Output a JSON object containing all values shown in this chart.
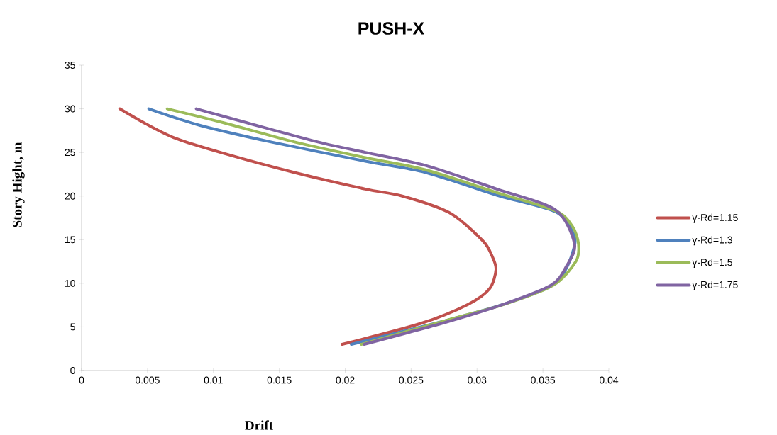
{
  "chart_data": {
    "type": "line",
    "title": "PUSH-X",
    "xlabel": "Drift",
    "ylabel": "Story Hight, m",
    "xlim": [
      0,
      0.04
    ],
    "xticks": [
      0,
      0.005,
      0.01,
      0.015,
      0.02,
      0.025,
      0.03,
      0.035,
      0.04
    ],
    "ylim": [
      0,
      35
    ],
    "yticks": [
      0,
      5,
      10,
      15,
      20,
      25,
      30,
      35
    ],
    "legend": "right",
    "marker": "none",
    "line_style": "solid",
    "series": [
      {
        "name": "γ-Rd=1.15",
        "color": "#c0504d",
        "x": [
          0.0029,
          0.00485,
          0.00716,
          0.01077,
          0.01615,
          0.02153,
          0.02433,
          0.02789,
          0.03042,
          0.03112,
          0.03144,
          0.03096,
          0.02934,
          0.02573,
          0.01976
        ],
        "values": [
          30,
          28.3,
          26.6,
          24.9,
          22.7,
          20.8,
          20.0,
          18.1,
          14.9,
          13.2,
          11.6,
          9.4,
          7.6,
          5.4,
          3.0
        ]
      },
      {
        "name": "γ-Rd=1.3",
        "color": "#4f81bd",
        "x": [
          0.0051,
          0.00899,
          0.01437,
          0.02153,
          0.02611,
          0.0315,
          0.03596,
          0.03725,
          0.03742,
          0.0368,
          0.03564,
          0.03203,
          0.02756,
          0.02046
        ],
        "values": [
          30,
          28.1,
          26.2,
          24.0,
          22.7,
          20.1,
          18.2,
          15.9,
          14.5,
          11.8,
          9.7,
          7.6,
          5.7,
          3.0
        ]
      },
      {
        "name": "γ-Rd=1.5",
        "color": "#9bbb59",
        "x": [
          0.0065,
          0.01077,
          0.01615,
          0.02153,
          0.02611,
          0.0315,
          0.03596,
          0.03725,
          0.0377,
          0.0375,
          0.0358,
          0.0321,
          0.02756,
          0.02121
        ],
        "values": [
          30,
          28.4,
          26.2,
          24.4,
          23.0,
          20.4,
          18.3,
          16.5,
          14.5,
          12.5,
          9.8,
          7.6,
          5.7,
          3.0
        ]
      },
      {
        "name": "γ-Rd=1.75",
        "color": "#8064a2",
        "x": [
          0.0087,
          0.01254,
          0.01793,
          0.02153,
          0.02611,
          0.0315,
          0.03596,
          0.0374,
          0.0368,
          0.03564,
          0.03203,
          0.02756,
          0.02143
        ],
        "values": [
          30,
          28.4,
          26.2,
          25.0,
          23.5,
          20.8,
          18.4,
          14.5,
          12.0,
          9.8,
          7.6,
          5.5,
          3.0
        ]
      }
    ]
  }
}
